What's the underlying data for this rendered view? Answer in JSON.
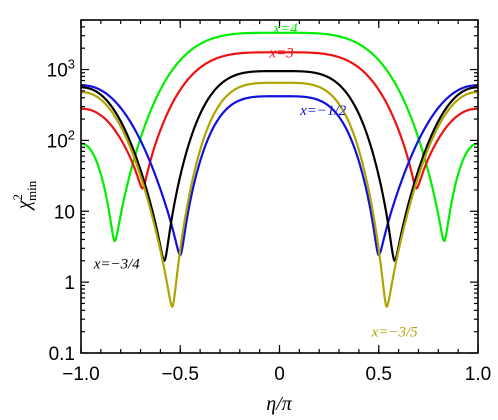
{
  "chart_data": {
    "type": "line",
    "xlabel": "η/π",
    "ylabel": "χ²min",
    "xlim": [
      -1.0,
      1.0
    ],
    "ylim": [
      0.1,
      5000
    ],
    "yscale": "log",
    "grid": false,
    "legend": "none",
    "x_ticks": [
      "−1.0",
      "−0.5",
      "0",
      "0.5",
      "1.0"
    ],
    "y_ticks": [
      "0.1",
      "1",
      "10",
      "10²",
      "10³"
    ],
    "series": [
      {
        "name": "x=4",
        "color": "#00ee00",
        "peak": 3300,
        "dip_x": 0.83,
        "dip_min": 3.8,
        "edge": 90,
        "label": "x=4",
        "label_at": [
          0.03,
          3300
        ]
      },
      {
        "name": "x=3",
        "color": "#ee1111",
        "peak": 1750,
        "dip_x": 0.69,
        "dip_min": 21,
        "edge": 280,
        "label": "x=3",
        "label_at": [
          0.01,
          1480
        ]
      },
      {
        "name": "x=−1/2",
        "color": "#1111dd",
        "peak": 420,
        "dip_x": 0.5,
        "dip_min": 2.4,
        "edge": 600,
        "label": "x=−1/2",
        "label_at": [
          0.22,
          230
        ]
      },
      {
        "name": "x=−3/4",
        "color": "#000000",
        "peak": 950,
        "dip_x": 0.58,
        "dip_min": 2.0,
        "edge": 560,
        "label": "x=−3/4",
        "label_at": [
          -0.82,
          1.55
        ]
      },
      {
        "name": "x=−3/5",
        "color": "#b0a400",
        "peak": 650,
        "dip_x": 0.54,
        "dip_min": 0.45,
        "edge": 480,
        "label": "x=−3/5",
        "label_at": [
          0.58,
          0.17
        ]
      }
    ]
  }
}
